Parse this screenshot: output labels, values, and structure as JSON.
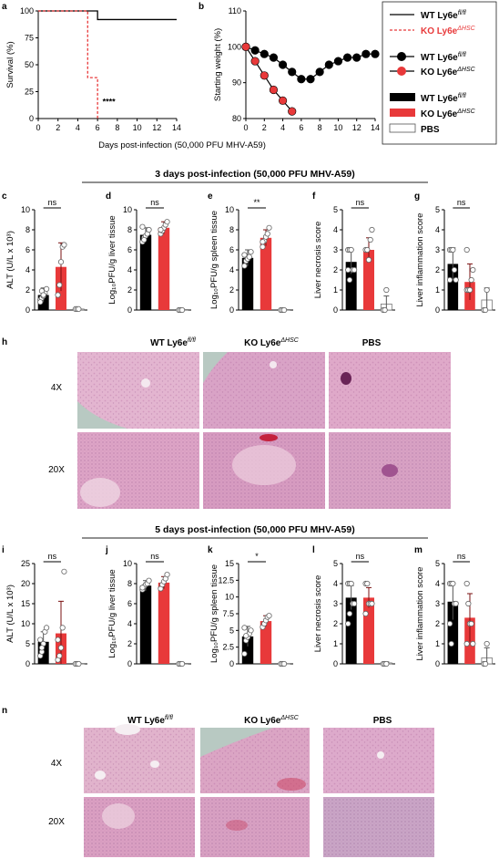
{
  "colors": {
    "wt": "#000000",
    "ko": "#e8393a",
    "pbs": "#ffffff",
    "ko_line": "#e8393a"
  },
  "legend": {
    "line_wt": "WT Ly6e",
    "line_wt_sup": "fl/fl",
    "line_ko": "KO Ly6e",
    "line_ko_sup": "ΔHSC",
    "pt_wt": "WT Ly6e",
    "pt_wt_sup": "fl/fl",
    "pt_ko": "KO Ly6e",
    "pt_ko_sup": "ΔHSC",
    "bar_wt": "WT Ly6e",
    "bar_wt_sup": "fl/fl",
    "bar_ko": "KO Ly6e",
    "bar_ko_sup": "ΔHSC",
    "bar_pbs": "PBS"
  },
  "panel_letters": {
    "a": "a",
    "b": "b",
    "c": "c",
    "d": "d",
    "e": "e",
    "f": "f",
    "g": "g",
    "h": "h",
    "i": "i",
    "j": "j",
    "k": "k",
    "l": "l",
    "m": "m",
    "n": "n"
  },
  "headers": {
    "day3": "3 days post-infection (50,000 PFU MHV-A59)",
    "day5": "5 days post-infection (50,000 PFU MHV-A59)"
  },
  "shared_xlabel": "Days post-infection (50,000 PFU MHV-A59)",
  "histology": {
    "col_wt": "WT Ly6e",
    "col_wt_sup": "fl/fl",
    "col_ko": "KO Ly6e",
    "col_ko_sup": "ΔHSC",
    "col_pbs": "PBS",
    "row_4x": "4X",
    "row_20x": "20X"
  },
  "chart_data": [
    {
      "id": "a",
      "type": "line",
      "ylabel": "Survival (%)",
      "xlim": [
        0,
        14
      ],
      "ylim": [
        0,
        100
      ],
      "xticks": [
        0,
        2,
        4,
        6,
        8,
        10,
        12,
        14
      ],
      "yticks": [
        0,
        25,
        50,
        75,
        100
      ],
      "series": [
        {
          "name": "WT Ly6e fl/fl",
          "steps": [
            [
              0,
              100
            ],
            [
              6,
              100
            ],
            [
              6,
              92
            ],
            [
              14,
              92
            ]
          ]
        },
        {
          "name": "KO Ly6e ΔHSC",
          "steps": [
            [
              0,
              100
            ],
            [
              5,
              100
            ],
            [
              5,
              38
            ],
            [
              6,
              38
            ],
            [
              6,
              0
            ]
          ]
        }
      ],
      "annotation": "****"
    },
    {
      "id": "b",
      "type": "line",
      "ylabel": "Starting weight (%)",
      "xlim": [
        0,
        14
      ],
      "ylim": [
        80,
        110
      ],
      "xticks": [
        0,
        2,
        4,
        6,
        8,
        10,
        12,
        14
      ],
      "yticks": [
        80,
        90,
        100,
        110
      ],
      "series": [
        {
          "name": "WT Ly6e fl/fl",
          "x": [
            0,
            1,
            2,
            3,
            4,
            5,
            6,
            7,
            8,
            9,
            10,
            11,
            12,
            13,
            14
          ],
          "y": [
            100,
            99,
            98,
            97,
            95,
            93,
            91,
            91,
            93,
            95,
            96,
            97,
            97,
            98,
            98
          ]
        },
        {
          "name": "KO Ly6e ΔHSC",
          "x": [
            0,
            1,
            2,
            3,
            4,
            5
          ],
          "y": [
            100,
            96,
            92,
            88,
            85,
            82
          ]
        }
      ]
    },
    {
      "id": "c",
      "type": "bar",
      "ylabel": "ALT (U/L x 10³)",
      "ylim": [
        0,
        10
      ],
      "yticks": [
        0,
        2,
        4,
        6,
        8,
        10
      ],
      "categories": [
        "WT",
        "KO",
        "PBS"
      ],
      "values": [
        1.5,
        4.3,
        0.1
      ],
      "errors": [
        0.7,
        2.4,
        0.05
      ],
      "points": [
        [
          1,
          1.2,
          1.4,
          1.7,
          2.1,
          0.8,
          1.9,
          1.5
        ],
        [
          1.5,
          2.5,
          4.8,
          6.3,
          6.5
        ],
        [
          0.1,
          0.1,
          0.1
        ]
      ],
      "sig": "ns"
    },
    {
      "id": "d",
      "type": "bar",
      "ylabel": "Log₁₀PFU/g liver tissue",
      "ylim": [
        0,
        10
      ],
      "yticks": [
        0,
        2,
        4,
        6,
        8,
        10
      ],
      "categories": [
        "WT",
        "KO",
        "PBS"
      ],
      "values": [
        7.5,
        8.2,
        0.05
      ],
      "errors": [
        0.7,
        0.6,
        0.05
      ],
      "points": [
        [
          6.8,
          7.2,
          7.4,
          7.6,
          8.0,
          8.3,
          7.0
        ],
        [
          7.6,
          7.9,
          8.2,
          8.5,
          8.8,
          8.0
        ],
        [
          0,
          0,
          0
        ]
      ],
      "sig": "ns"
    },
    {
      "id": "e",
      "type": "bar",
      "ylabel": "Log₁₀PFU/g spleen tissue",
      "ylim": [
        0,
        10
      ],
      "yticks": [
        0,
        2,
        4,
        6,
        8,
        10
      ],
      "categories": [
        "WT",
        "KO",
        "PBS"
      ],
      "values": [
        5.2,
        7.2,
        0.05
      ],
      "errors": [
        0.8,
        0.8,
        0.05
      ],
      "points": [
        [
          4.4,
          4.9,
          5.1,
          5.3,
          5.8,
          5.5
        ],
        [
          6.3,
          6.9,
          7.3,
          7.6,
          8.2,
          6.8
        ],
        [
          0,
          0,
          0
        ]
      ],
      "sig": "**"
    },
    {
      "id": "f",
      "type": "bar",
      "ylabel": "Liver necrosis score",
      "ylim": [
        0,
        5
      ],
      "yticks": [
        0,
        1,
        2,
        3,
        4,
        5
      ],
      "categories": [
        "WT",
        "KO",
        "PBS"
      ],
      "values": [
        2.4,
        3.0,
        0.3
      ],
      "errors": [
        0.6,
        0.6,
        0.4
      ],
      "points": [
        [
          3,
          3,
          3,
          2,
          2,
          2,
          1.5
        ],
        [
          3,
          3,
          2.5,
          3.5,
          4
        ],
        [
          0,
          0,
          1
        ]
      ],
      "sig": "ns"
    },
    {
      "id": "g",
      "type": "bar",
      "ylabel": "Liver inflammation score",
      "ylim": [
        0,
        5
      ],
      "yticks": [
        0,
        1,
        2,
        3,
        4,
        5
      ],
      "categories": [
        "WT",
        "KO",
        "PBS"
      ],
      "values": [
        2.3,
        1.4,
        0.5
      ],
      "errors": [
        0.8,
        0.9,
        0.6
      ],
      "points": [
        [
          3,
          3,
          3,
          2,
          1.5,
          1.5
        ],
        [
          1,
          1,
          1,
          1.5,
          2,
          3
        ],
        [
          0,
          0,
          1
        ]
      ],
      "sig": "ns"
    },
    {
      "id": "i",
      "type": "bar",
      "ylabel": "ALT (U/L x 10³)",
      "ylim": [
        0,
        25
      ],
      "yticks": [
        0,
        5,
        10,
        15,
        20,
        25
      ],
      "categories": [
        "WT",
        "KO",
        "PBS"
      ],
      "values": [
        5.5,
        7.6,
        0.1
      ],
      "errors": [
        2.5,
        8.0,
        0.1
      ],
      "points": [
        [
          2,
          3,
          5,
          8,
          9,
          6,
          4
        ],
        [
          1,
          2,
          4,
          9,
          23,
          6
        ],
        [
          0,
          0,
          0
        ]
      ],
      "sig": "ns"
    },
    {
      "id": "j",
      "type": "bar",
      "ylabel": "Log₁₀PFU/g liver tissue",
      "ylim": [
        0,
        10
      ],
      "yticks": [
        0,
        2,
        4,
        6,
        8,
        10
      ],
      "categories": [
        "WT",
        "KO",
        "PBS"
      ],
      "values": [
        7.8,
        8.1,
        0.05
      ],
      "errors": [
        0.5,
        0.6,
        0.05
      ],
      "points": [
        [
          7.4,
          7.7,
          7.9,
          8.0,
          8.3,
          7.6
        ],
        [
          7.5,
          7.9,
          8.2,
          8.5,
          8.9
        ],
        [
          0,
          0,
          0
        ]
      ],
      "sig": "ns"
    },
    {
      "id": "k",
      "type": "bar",
      "ylabel": "Log₁₀PFU/g spleen tissue",
      "ylim": [
        0,
        15
      ],
      "yticks": [
        0,
        2.5,
        5,
        7.5,
        10,
        12.5,
        15
      ],
      "categories": [
        "WT",
        "KO",
        "PBS"
      ],
      "values": [
        4.1,
        6.4,
        0.05
      ],
      "errors": [
        1.5,
        0.8,
        0.05
      ],
      "points": [
        [
          1.5,
          3.5,
          4,
          4.5,
          5,
          5.4,
          4.2
        ],
        [
          5.5,
          6,
          6.5,
          7,
          7.2
        ],
        [
          0,
          0,
          0
        ]
      ],
      "sig": "*"
    },
    {
      "id": "l",
      "type": "bar",
      "ylabel": "Liver necrosis score",
      "ylim": [
        0,
        5
      ],
      "yticks": [
        0,
        1,
        2,
        3,
        4,
        5
      ],
      "categories": [
        "WT",
        "KO",
        "PBS"
      ],
      "values": [
        3.3,
        3.3,
        0.05
      ],
      "errors": [
        0.6,
        0.5,
        0.05
      ],
      "points": [
        [
          4,
          4,
          4,
          3,
          3,
          2,
          2.5
        ],
        [
          4,
          4,
          3,
          3,
          3,
          2.5
        ],
        [
          0,
          0,
          0
        ]
      ],
      "sig": "ns"
    },
    {
      "id": "m",
      "type": "bar",
      "ylabel": "Liver inflammation score",
      "ylim": [
        0,
        5
      ],
      "yticks": [
        0,
        1,
        2,
        3,
        4,
        5
      ],
      "categories": [
        "WT",
        "KO",
        "PBS"
      ],
      "values": [
        3.1,
        2.3,
        0.3
      ],
      "errors": [
        0.9,
        1.2,
        0.5
      ],
      "points": [
        [
          4,
          4,
          4,
          3,
          3,
          2,
          1
        ],
        [
          4,
          3,
          2,
          2,
          1,
          1
        ],
        [
          0,
          0,
          1
        ]
      ],
      "sig": "ns"
    }
  ]
}
